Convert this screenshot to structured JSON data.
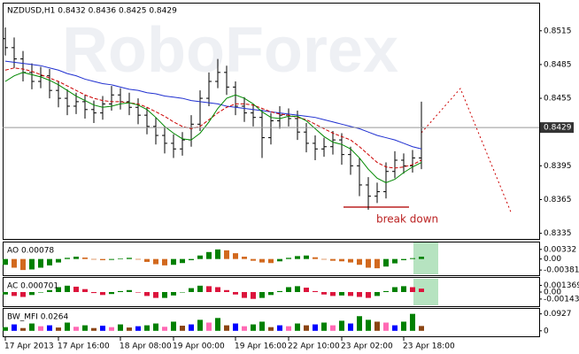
{
  "chart_data": [
    {
      "type": "ohlc",
      "title": "NZDUSD,H1  0.8432 0.8436 0.8425 0.8429",
      "watermark": "RoboForex",
      "annotation": "break down",
      "categories": [
        "17 Apr 2013",
        null,
        null,
        null,
        null,
        null,
        "17 Apr 16:00",
        null,
        null,
        null,
        null,
        null,
        null,
        "18 Apr 08:00",
        null,
        null,
        null,
        null,
        null,
        "19 Apr 00:00",
        null,
        null,
        null,
        null,
        null,
        null,
        "19 Apr 16:00",
        null,
        null,
        null,
        null,
        null,
        "22 Apr 10:00",
        null,
        null,
        null,
        null,
        null,
        "23 Apr 02:00",
        null,
        null,
        null,
        null,
        null,
        null,
        "23 Apr 18:00",
        null,
        null
      ],
      "open": [
        0.8508,
        0.85,
        0.849,
        0.8478,
        0.847,
        0.8475,
        0.8462,
        0.8455,
        0.8448,
        0.8452,
        0.8445,
        0.8442,
        0.845,
        0.8458,
        0.8452,
        0.8447,
        0.844,
        0.843,
        0.8422,
        0.8415,
        0.841,
        0.8418,
        0.8432,
        0.8455,
        0.847,
        0.8478,
        0.8465,
        0.8448,
        0.8442,
        0.8438,
        0.842,
        0.8435,
        0.844,
        0.8437,
        0.8425,
        0.8415,
        0.841,
        0.8412,
        0.8418,
        0.8405,
        0.8395,
        0.8378,
        0.8368,
        0.8372,
        0.839,
        0.84,
        0.8395,
        0.8402
      ],
      "high": [
        0.8518,
        0.8509,
        0.8497,
        0.8486,
        0.8483,
        0.8481,
        0.847,
        0.8463,
        0.846,
        0.8458,
        0.8453,
        0.8457,
        0.8466,
        0.8464,
        0.846,
        0.8455,
        0.8447,
        0.8438,
        0.843,
        0.8423,
        0.8425,
        0.844,
        0.8462,
        0.8478,
        0.849,
        0.8484,
        0.847,
        0.8456,
        0.845,
        0.8445,
        0.8442,
        0.8448,
        0.8446,
        0.8444,
        0.8433,
        0.8422,
        0.842,
        0.8426,
        0.8424,
        0.8412,
        0.8402,
        0.8385,
        0.838,
        0.8398,
        0.8408,
        0.8406,
        0.8409,
        0.8452
      ],
      "low": [
        0.8493,
        0.8482,
        0.847,
        0.8463,
        0.8464,
        0.8455,
        0.8447,
        0.844,
        0.8441,
        0.8437,
        0.8433,
        0.8436,
        0.8444,
        0.8445,
        0.844,
        0.8432,
        0.8423,
        0.8414,
        0.8406,
        0.8402,
        0.8404,
        0.8412,
        0.8426,
        0.8448,
        0.8464,
        0.8458,
        0.844,
        0.8434,
        0.843,
        0.8402,
        0.8414,
        0.8428,
        0.843,
        0.8418,
        0.8407,
        0.84,
        0.8403,
        0.8405,
        0.8396,
        0.8387,
        0.8368,
        0.8356,
        0.8362,
        0.8366,
        0.8384,
        0.8388,
        0.8389,
        0.8392
      ],
      "close": [
        0.85,
        0.849,
        0.8478,
        0.847,
        0.8475,
        0.8462,
        0.8455,
        0.8448,
        0.8452,
        0.8445,
        0.8442,
        0.845,
        0.8458,
        0.8452,
        0.8447,
        0.844,
        0.843,
        0.8422,
        0.8415,
        0.841,
        0.8418,
        0.8432,
        0.8455,
        0.847,
        0.8478,
        0.8465,
        0.8448,
        0.8442,
        0.8438,
        0.842,
        0.8435,
        0.844,
        0.8437,
        0.8425,
        0.8415,
        0.841,
        0.8412,
        0.8418,
        0.8405,
        0.8395,
        0.8378,
        0.8368,
        0.8372,
        0.839,
        0.84,
        0.8395,
        0.8402,
        0.8429
      ],
      "bar_color": "#000000",
      "series": [
        {
          "color": "#1f2fd0",
          "dash": false,
          "values": [
            0.8488,
            0.8487,
            0.8486,
            0.8485,
            0.8484,
            0.8482,
            0.848,
            0.8477,
            0.8475,
            0.8472,
            0.847,
            0.8468,
            0.8467,
            0.8465,
            0.8463,
            0.8462,
            0.846,
            0.8459,
            0.8457,
            0.8456,
            0.8455,
            0.8453,
            0.8452,
            0.8451,
            0.845,
            0.8448,
            0.8447,
            0.8446,
            0.8445,
            0.8444,
            0.8443,
            0.8442,
            0.8441,
            0.844,
            0.8439,
            0.8438,
            0.8436,
            0.8434,
            0.8432,
            0.843,
            0.8428,
            0.8425,
            0.8422,
            0.842,
            0.8418,
            0.8415,
            0.8412,
            0.841
          ]
        },
        {
          "color": "#cc0000",
          "dash": true,
          "values": [
            0.848,
            0.8482,
            0.8481,
            0.8479,
            0.8476,
            0.8473,
            0.847,
            0.8466,
            0.8462,
            0.8458,
            0.8455,
            0.8453,
            0.8452,
            0.8452,
            0.8451,
            0.845,
            0.8447,
            0.8443,
            0.8439,
            0.8434,
            0.843,
            0.8428,
            0.843,
            0.8436,
            0.8442,
            0.8447,
            0.845,
            0.845,
            0.8449,
            0.8446,
            0.8443,
            0.8441,
            0.844,
            0.8438,
            0.8436,
            0.8432,
            0.8428,
            0.8424,
            0.8421,
            0.8418,
            0.8412,
            0.8405,
            0.8398,
            0.8394,
            0.8393,
            0.8394,
            0.8396,
            0.84
          ]
        },
        {
          "color": "#008800",
          "dash": false,
          "values": [
            0.847,
            0.8475,
            0.8478,
            0.8476,
            0.8474,
            0.8471,
            0.8467,
            0.8462,
            0.8457,
            0.8453,
            0.8449,
            0.8447,
            0.8448,
            0.845,
            0.8451,
            0.8449,
            0.8445,
            0.8438,
            0.843,
            0.8424,
            0.8419,
            0.8418,
            0.8424,
            0.8434,
            0.8446,
            0.8455,
            0.8458,
            0.8455,
            0.845,
            0.8443,
            0.8438,
            0.8437,
            0.8439,
            0.8439,
            0.8435,
            0.8428,
            0.8421,
            0.8416,
            0.8414,
            0.841,
            0.8402,
            0.8392,
            0.8384,
            0.838,
            0.8383,
            0.8389,
            0.8394,
            0.8398
          ]
        }
      ],
      "current_price": 0.8429,
      "ylim": [
        0.833,
        0.854
      ],
      "yticks": [
        0.8335,
        0.8365,
        0.8395,
        0.8455,
        0.8485,
        0.8515
      ]
    },
    {
      "type": "histogram",
      "title": "AO 0.00078",
      "up_color": "#008000",
      "down_color": "#d2691e",
      "values": [
        -0.002,
        -0.003,
        -0.0038,
        -0.0036,
        -0.003,
        -0.0022,
        -0.0012,
        0.0004,
        0.0008,
        0.0005,
        -0.0002,
        -0.0004,
        -0.0003,
        0.0002,
        0.0004,
        -0.0002,
        -0.001,
        -0.0018,
        -0.0022,
        -0.002,
        -0.0014,
        -0.0004,
        0.0012,
        0.0024,
        0.0033,
        0.003,
        0.002,
        0.0008,
        -0.0006,
        -0.0012,
        -0.0014,
        -0.0008,
        0.0004,
        0.001,
        0.0012,
        0.0006,
        -0.0002,
        -0.0006,
        -0.0008,
        -0.0012,
        -0.002,
        -0.003,
        -0.0032,
        -0.0026,
        -0.0015,
        -0.0004,
        0.0003,
        0.00078
      ],
      "ylim": [
        -0.0056,
        0.0057
      ],
      "yticks": [
        0.00332,
        {
          "value": 0,
          "label": "0.00"
        },
        -0.00381
      ]
    },
    {
      "type": "histogram",
      "title": "AC 0.000701",
      "up_color": "#008000",
      "down_color": "#dc143c",
      "values": [
        -0.0005,
        -0.0008,
        -0.001,
        -0.0006,
        -0.0001,
        0.0004,
        0.001,
        0.0013,
        0.0011,
        0.0006,
        -0.0002,
        -0.0006,
        -0.0004,
        0.0002,
        0.0004,
        -0.0001,
        -0.0008,
        -0.0012,
        -0.0012,
        -0.0007,
        0.0,
        0.0008,
        0.0013,
        0.0012,
        0.001,
        0.0004,
        -0.0005,
        -0.0012,
        -0.0014,
        -0.0012,
        -0.0006,
        0.0002,
        0.001,
        0.0012,
        0.0009,
        0.0002,
        -0.0005,
        -0.0008,
        -0.0007,
        -0.0008,
        -0.001,
        -0.0012,
        -0.0008,
        0.0002,
        0.001,
        0.0012,
        0.001,
        0.000701
      ],
      "ylim": [
        -0.0029,
        0.0029
      ],
      "yticks": [
        0.001369,
        {
          "value": 0,
          "label": "0.00"
        },
        -0.00143
      ]
    },
    {
      "type": "histogram",
      "title": "BW_MFI 0.0264",
      "values": [
        0.02,
        0.035,
        0.015,
        0.04,
        0.025,
        0.03,
        0.018,
        0.045,
        0.022,
        0.03,
        0.015,
        0.028,
        0.02,
        0.035,
        0.018,
        0.025,
        0.03,
        0.04,
        0.022,
        0.05,
        0.028,
        0.035,
        0.06,
        0.045,
        0.07,
        0.03,
        0.04,
        0.025,
        0.035,
        0.05,
        0.02,
        0.03,
        0.025,
        0.04,
        0.03,
        0.035,
        0.045,
        0.03,
        0.055,
        0.04,
        0.08,
        0.06,
        0.05,
        0.045,
        0.03,
        0.05,
        0.0927,
        0.0264
      ],
      "colors": [
        "#008000",
        "#0000ff",
        "#8b4513",
        "#008000",
        "#ff69b4",
        "#0000ff",
        "#8b4513",
        "#008000",
        "#ff69b4",
        "#008000",
        "#8b4513",
        "#0000ff",
        "#ff69b4",
        "#008000",
        "#8b4513",
        "#0000ff",
        "#008000",
        "#008000",
        "#ff69b4",
        "#008000",
        "#8b4513",
        "#0000ff",
        "#008000",
        "#ff69b4",
        "#008000",
        "#8b4513",
        "#0000ff",
        "#ff69b4",
        "#008000",
        "#008000",
        "#8b4513",
        "#0000ff",
        "#ff69b4",
        "#008000",
        "#8b4513",
        "#0000ff",
        "#008000",
        "#ff69b4",
        "#008000",
        "#0000ff",
        "#008000",
        "#008000",
        "#8b4513",
        "#ff69b4",
        "#0000ff",
        "#008000",
        "#008000",
        "#8b4513"
      ],
      "ylim": [
        -0.03,
        0.12
      ],
      "yticks": [
        0.0927,
        0
      ]
    }
  ]
}
